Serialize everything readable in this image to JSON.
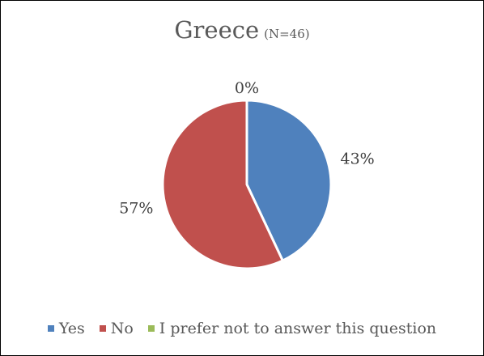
{
  "chart_data": {
    "type": "pie",
    "title": "Greece",
    "subtitle": "(N=46)",
    "slices": [
      {
        "name": "Yes",
        "value": 43,
        "label": "43%",
        "color": "#4f81bd"
      },
      {
        "name": "No",
        "value": 57,
        "label": "57%",
        "color": "#c0504d"
      },
      {
        "name": "I prefer not to answer this question",
        "value": 0,
        "label": "0%",
        "color": "#9bbb59"
      }
    ],
    "legend_position": "bottom"
  }
}
